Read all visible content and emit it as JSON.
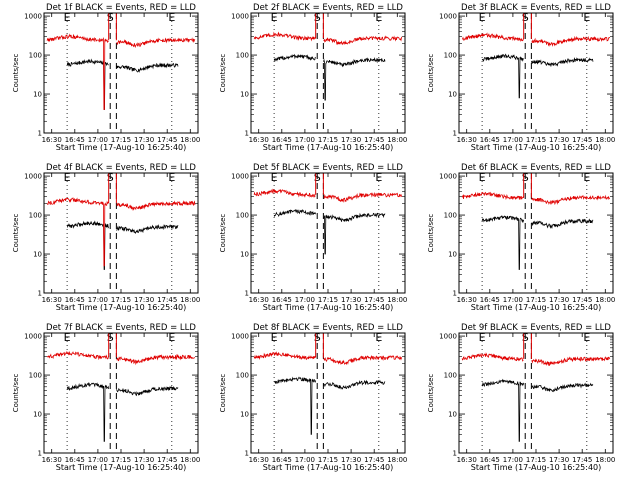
{
  "figure": {
    "time_label": "Start Time (17-Aug-10 16:25:40)",
    "ylabel": "Counts/sec",
    "x_ticks": [
      "16:30",
      "16:45",
      "17:00",
      "17:15",
      "17:30",
      "17:45",
      "18:00"
    ],
    "y_ticks": [
      "1",
      "10",
      "100",
      "1000"
    ],
    "marker_labels": [
      "E",
      "S",
      "E"
    ],
    "colors": {
      "events": "#000000",
      "lld": "#e00000"
    }
  },
  "chart_data": [
    {
      "type": "line",
      "title": "Det 1f BLACK = Events, RED = LLD",
      "xlabel": "Start Time (17-Aug-10 16:25:40)",
      "ylabel": "Counts/sec",
      "x_range": [
        "16:25",
        "18:05"
      ],
      "ylim": [
        1,
        1200
      ],
      "yscale": "log",
      "markers": [
        {
          "label": "E",
          "time": "16:40"
        },
        {
          "label": "S",
          "time": "17:08"
        },
        {
          "label": "E",
          "time": "17:48"
        }
      ],
      "series": [
        {
          "name": "Events",
          "color": "#000000",
          "start": "16:40",
          "end": "17:52",
          "gap": [
            "17:07",
            "17:12"
          ],
          "level": 55,
          "spike": {
            "time": "17:04",
            "min": 4
          }
        },
        {
          "name": "LLD",
          "color": "#e00000",
          "start": "16:27",
          "end": "18:03",
          "gap": [
            "17:07",
            "17:12"
          ],
          "level": 240,
          "spike": {
            "time": "17:04",
            "min": 4
          }
        }
      ]
    },
    {
      "type": "line",
      "title": "Det 2f BLACK = Events, RED = LLD",
      "xlabel": "Start Time (17-Aug-10 16:25:40)",
      "ylabel": "Counts/sec",
      "x_range": [
        "16:25",
        "18:05"
      ],
      "ylim": [
        1,
        1200
      ],
      "yscale": "log",
      "markers": [
        {
          "label": "E",
          "time": "16:40"
        },
        {
          "label": "S",
          "time": "17:08"
        },
        {
          "label": "E",
          "time": "17:48"
        }
      ],
      "series": [
        {
          "name": "Events",
          "color": "#000000",
          "start": "16:40",
          "end": "17:52",
          "gap": [
            "17:07",
            "17:12"
          ],
          "level": 75,
          "spike": {
            "time": "17:13",
            "min": 7
          }
        },
        {
          "name": "LLD",
          "color": "#e00000",
          "start": "16:27",
          "end": "18:03",
          "gap": [
            "17:07",
            "17:12"
          ],
          "level": 270,
          "spike": null
        }
      ]
    },
    {
      "type": "line",
      "title": "Det 3f BLACK = Events, RED = LLD",
      "xlabel": "Start Time (17-Aug-10 16:25:40)",
      "ylabel": "Counts/sec",
      "x_range": [
        "16:25",
        "18:05"
      ],
      "ylim": [
        1,
        1200
      ],
      "yscale": "log",
      "markers": [
        {
          "label": "E",
          "time": "16:40"
        },
        {
          "label": "S",
          "time": "17:08"
        },
        {
          "label": "E",
          "time": "17:48"
        }
      ],
      "series": [
        {
          "name": "Events",
          "color": "#000000",
          "start": "16:40",
          "end": "17:52",
          "gap": [
            "17:07",
            "17:12"
          ],
          "level": 75,
          "spike": {
            "time": "17:04",
            "min": 8
          }
        },
        {
          "name": "LLD",
          "color": "#e00000",
          "start": "16:27",
          "end": "18:03",
          "gap": [
            "17:07",
            "17:12"
          ],
          "level": 260,
          "spike": null
        }
      ]
    },
    {
      "type": "line",
      "title": "Det 4f BLACK = Events, RED = LLD",
      "xlabel": "Start Time (17-Aug-10 16:25:40)",
      "ylabel": "Counts/sec",
      "x_range": [
        "16:25",
        "18:05"
      ],
      "ylim": [
        1,
        1200
      ],
      "yscale": "log",
      "markers": [
        {
          "label": "E",
          "time": "16:40"
        },
        {
          "label": "S",
          "time": "17:08"
        },
        {
          "label": "E",
          "time": "17:48"
        }
      ],
      "series": [
        {
          "name": "Events",
          "color": "#000000",
          "start": "16:40",
          "end": "17:52",
          "gap": [
            "17:07",
            "17:12"
          ],
          "level": 50,
          "spike": {
            "time": "17:04",
            "min": 4
          }
        },
        {
          "name": "LLD",
          "color": "#e00000",
          "start": "16:27",
          "end": "18:03",
          "gap": [
            "17:07",
            "17:12"
          ],
          "level": 200,
          "spike": {
            "time": "17:04",
            "min": 5
          }
        }
      ]
    },
    {
      "type": "line",
      "title": "Det 5f BLACK = Events, RED = LLD",
      "xlabel": "Start Time (17-Aug-10 16:25:40)",
      "ylabel": "Counts/sec",
      "x_range": [
        "16:25",
        "18:05"
      ],
      "ylim": [
        1,
        1200
      ],
      "yscale": "log",
      "markers": [
        {
          "label": "E",
          "time": "16:40"
        },
        {
          "label": "S",
          "time": "17:08"
        },
        {
          "label": "E",
          "time": "17:48"
        }
      ],
      "series": [
        {
          "name": "Events",
          "color": "#000000",
          "start": "16:40",
          "end": "17:52",
          "gap": [
            "17:07",
            "17:12"
          ],
          "level": 100,
          "spike": {
            "time": "17:13",
            "min": 10
          }
        },
        {
          "name": "LLD",
          "color": "#e00000",
          "start": "16:27",
          "end": "18:03",
          "gap": [
            "17:07",
            "17:12"
          ],
          "level": 330,
          "spike": null
        }
      ]
    },
    {
      "type": "line",
      "title": "Det 6f BLACK = Events, RED = LLD",
      "xlabel": "Start Time (17-Aug-10 16:25:40)",
      "ylabel": "Counts/sec",
      "x_range": [
        "16:25",
        "18:05"
      ],
      "ylim": [
        1,
        1200
      ],
      "yscale": "log",
      "markers": [
        {
          "label": "E",
          "time": "16:40"
        },
        {
          "label": "S",
          "time": "17:08"
        },
        {
          "label": "E",
          "time": "17:48"
        }
      ],
      "series": [
        {
          "name": "Events",
          "color": "#000000",
          "start": "16:40",
          "end": "17:52",
          "gap": [
            "17:07",
            "17:12"
          ],
          "level": 70,
          "spike": {
            "time": "17:04",
            "min": 4
          }
        },
        {
          "name": "LLD",
          "color": "#e00000",
          "start": "16:27",
          "end": "18:03",
          "gap": [
            "17:07",
            "17:12"
          ],
          "level": 280,
          "spike": null
        }
      ]
    },
    {
      "type": "line",
      "title": "Det 7f BLACK = Events, RED = LLD",
      "xlabel": "Start Time (17-Aug-10 16:25:40)",
      "ylabel": "Counts/sec",
      "x_range": [
        "16:25",
        "18:05"
      ],
      "ylim": [
        1,
        1200
      ],
      "yscale": "log",
      "markers": [
        {
          "label": "E",
          "time": "16:40"
        },
        {
          "label": "S",
          "time": "17:08"
        },
        {
          "label": "E",
          "time": "17:48"
        }
      ],
      "series": [
        {
          "name": "Events",
          "color": "#000000",
          "start": "16:40",
          "end": "17:52",
          "gap": [
            "17:07",
            "17:12"
          ],
          "level": 45,
          "spike": {
            "time": "17:04",
            "min": 2
          }
        },
        {
          "name": "LLD",
          "color": "#e00000",
          "start": "16:27",
          "end": "18:03",
          "gap": [
            "17:07",
            "17:12"
          ],
          "level": 290,
          "spike": null
        }
      ]
    },
    {
      "type": "line",
      "title": "Det 8f BLACK = Events, RED = LLD",
      "xlabel": "Start Time (17-Aug-10 16:25:40)",
      "ylabel": "Counts/sec",
      "x_range": [
        "16:25",
        "18:05"
      ],
      "ylim": [
        1,
        1200
      ],
      "yscale": "log",
      "markers": [
        {
          "label": "E",
          "time": "16:40"
        },
        {
          "label": "S",
          "time": "17:08"
        },
        {
          "label": "E",
          "time": "17:48"
        }
      ],
      "series": [
        {
          "name": "Events",
          "color": "#000000",
          "start": "16:40",
          "end": "17:52",
          "gap": [
            "17:07",
            "17:12"
          ],
          "level": 65,
          "spike": {
            "time": "17:04",
            "min": 3
          }
        },
        {
          "name": "LLD",
          "color": "#e00000",
          "start": "16:27",
          "end": "18:03",
          "gap": [
            "17:07",
            "17:12"
          ],
          "level": 280,
          "spike": null
        }
      ]
    },
    {
      "type": "line",
      "title": "Det 9f BLACK = Events, RED = LLD",
      "xlabel": "Start Time (17-Aug-10 16:25:40)",
      "ylabel": "Counts/sec",
      "x_range": [
        "16:25",
        "18:05"
      ],
      "ylim": [
        1,
        1200
      ],
      "yscale": "log",
      "markers": [
        {
          "label": "E",
          "time": "16:40"
        },
        {
          "label": "S",
          "time": "17:08"
        },
        {
          "label": "E",
          "time": "17:48"
        }
      ],
      "series": [
        {
          "name": "Events",
          "color": "#000000",
          "start": "16:40",
          "end": "17:52",
          "gap": [
            "17:07",
            "17:12"
          ],
          "level": 55,
          "spike": {
            "time": "17:04",
            "min": 2
          }
        },
        {
          "name": "LLD",
          "color": "#e00000",
          "start": "16:27",
          "end": "18:03",
          "gap": [
            "17:07",
            "17:12"
          ],
          "level": 260,
          "spike": null
        }
      ]
    }
  ]
}
